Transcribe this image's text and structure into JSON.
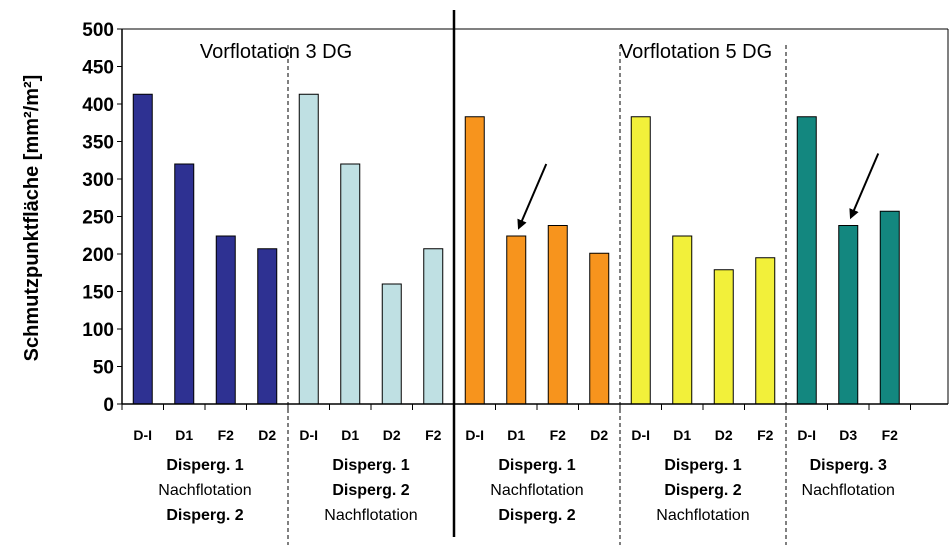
{
  "chart_data": {
    "type": "bar",
    "ylabel": "Schmutzpunktfläche [mm²/m²]",
    "ylim": [
      0,
      500
    ],
    "yticks": [
      0,
      50,
      100,
      150,
      200,
      250,
      300,
      350,
      400,
      450,
      500
    ],
    "sections": [
      {
        "title": "Vorflotation 3 DG"
      },
      {
        "title": "Vorflotation 5 DG"
      }
    ],
    "groups": [
      {
        "color": "#2E3192",
        "categories": [
          "D-I",
          "D1",
          "F2",
          "D2"
        ],
        "values": [
          413,
          320,
          224,
          207
        ],
        "labels": [
          {
            "text": "Disperg. 1",
            "bold": true
          },
          {
            "text": "Nachflotation",
            "bold": false
          },
          {
            "text": "Disperg. 2",
            "bold": true
          }
        ]
      },
      {
        "color": "#BFE0E3",
        "categories": [
          "D-I",
          "D1",
          "D2",
          "F2"
        ],
        "values": [
          413,
          320,
          160,
          207
        ],
        "labels": [
          {
            "text": "Disperg. 1",
            "bold": true
          },
          {
            "text": "Disperg. 2",
            "bold": true
          },
          {
            "text": "Nachflotation",
            "bold": false
          }
        ]
      },
      {
        "color": "#F7941D",
        "categories": [
          "D-I",
          "D1",
          "F2",
          "D2"
        ],
        "values": [
          383,
          224,
          238,
          201
        ],
        "labels": [
          {
            "text": "Disperg. 1",
            "bold": true
          },
          {
            "text": "Nachflotation",
            "bold": false
          },
          {
            "text": "Disperg. 2",
            "bold": true
          }
        ]
      },
      {
        "color": "#F2F03A",
        "categories": [
          "D-I",
          "D1",
          "D2",
          "F2"
        ],
        "values": [
          383,
          224,
          179,
          195
        ],
        "labels": [
          {
            "text": "Disperg. 1",
            "bold": true
          },
          {
            "text": "Disperg. 2",
            "bold": true
          },
          {
            "text": "Nachflotation",
            "bold": false
          }
        ]
      },
      {
        "color": "#13877F",
        "categories": [
          "D-I",
          "D3",
          "F2"
        ],
        "values": [
          383,
          238,
          257
        ],
        "labels": [
          {
            "text": "Disperg. 3",
            "bold": true
          },
          {
            "text": "Nachflotation",
            "bold": false
          }
        ]
      }
    ],
    "annotations": [
      {
        "type": "arrow",
        "group": 2,
        "bar": 1
      },
      {
        "type": "arrow",
        "group": 4,
        "bar": 1
      }
    ],
    "grid": false,
    "legend": "none"
  }
}
